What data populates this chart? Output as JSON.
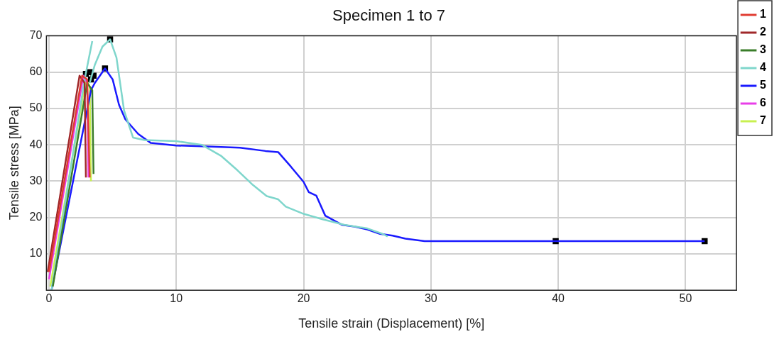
{
  "chart_data": {
    "type": "line",
    "title": "Specimen 1 to 7",
    "xlabel": "Tensile strain (Displacement) [%]",
    "ylabel": "Tensile stress [MPa]",
    "xlim": [
      -0.2,
      54
    ],
    "xticks": [
      0,
      10,
      20,
      30,
      40,
      50
    ],
    "ylim": [
      0,
      70
    ],
    "yticks": [
      10,
      20,
      30,
      40,
      50,
      60,
      70
    ],
    "grid": true,
    "legend": "right",
    "marker": "none",
    "line_style": "solid",
    "series": [
      {
        "name": "1",
        "color": "#e03c31",
        "x": [
          0,
          2.6,
          3.0,
          3.2
        ],
        "values": [
          5,
          59,
          58,
          31
        ]
      },
      {
        "name": "2",
        "color": "#a0282a",
        "x": [
          -0.1,
          2.4,
          2.8,
          2.9
        ],
        "values": [
          5,
          59,
          57,
          31
        ]
      },
      {
        "name": "3",
        "color": "#3a7d2a",
        "x": [
          0.3,
          3.0,
          3.4,
          3.5
        ],
        "values": [
          1,
          57,
          55,
          32
        ]
      },
      {
        "color": "#7fd6cc",
        "x": [
          0.2,
          2.8,
          3.4
        ],
        "values": [
          0,
          58,
          68.5
        ]
      },
      {
        "name": "4",
        "color": "#7fd6cc",
        "x": [
          3.2,
          3.6,
          4.2,
          4.8,
          5.3,
          5.9,
          6.6,
          7.5,
          10,
          12,
          13.5,
          14.8,
          16,
          17.1,
          18,
          18.6,
          20,
          21.5,
          23.2,
          25,
          26.2,
          26.6
        ],
        "values": [
          57,
          62,
          67,
          69,
          64,
          49.4,
          42,
          41.3,
          41,
          40,
          37,
          33,
          29,
          25.9,
          25,
          23,
          21,
          19.5,
          18,
          17,
          15.5,
          14.8
        ]
      },
      {
        "name": "5",
        "color": "#1a1aff",
        "x": [
          0.2,
          3.3,
          3.6,
          4.4,
          5,
          5.5,
          6,
          7,
          8,
          10,
          12,
          15,
          17,
          18,
          19,
          20,
          20.4,
          21,
          21.7,
          23,
          24,
          25,
          26,
          27,
          28,
          29.5,
          40,
          51.5
        ],
        "values": [
          0,
          55,
          57,
          61,
          58,
          51,
          47,
          43,
          40.5,
          39.8,
          39.6,
          39.2,
          38.3,
          38,
          34,
          29.8,
          27,
          26,
          20.5,
          18,
          17.5,
          16.7,
          15.5,
          15,
          14.2,
          13.5,
          13.5,
          13.5
        ]
      },
      {
        "name": "6",
        "color": "#e83ee8",
        "x": [
          0,
          2.7,
          3.0,
          3.1
        ],
        "values": [
          3,
          59,
          57,
          31
        ]
      },
      {
        "name": "7",
        "color": "#c8f050",
        "x": [
          0.1,
          2.9,
          3.2,
          3.3
        ],
        "values": [
          1,
          58,
          56,
          30
        ]
      },
      {
        "type": "scatter",
        "marker": "square",
        "color": "#000000",
        "x": [
          2.9,
          3.3,
          3.2,
          3.5,
          4.4,
          4.8,
          39.8,
          51.5
        ],
        "values": [
          59.5,
          58,
          60,
          59,
          61,
          69,
          13.5,
          13.5
        ]
      }
    ]
  }
}
